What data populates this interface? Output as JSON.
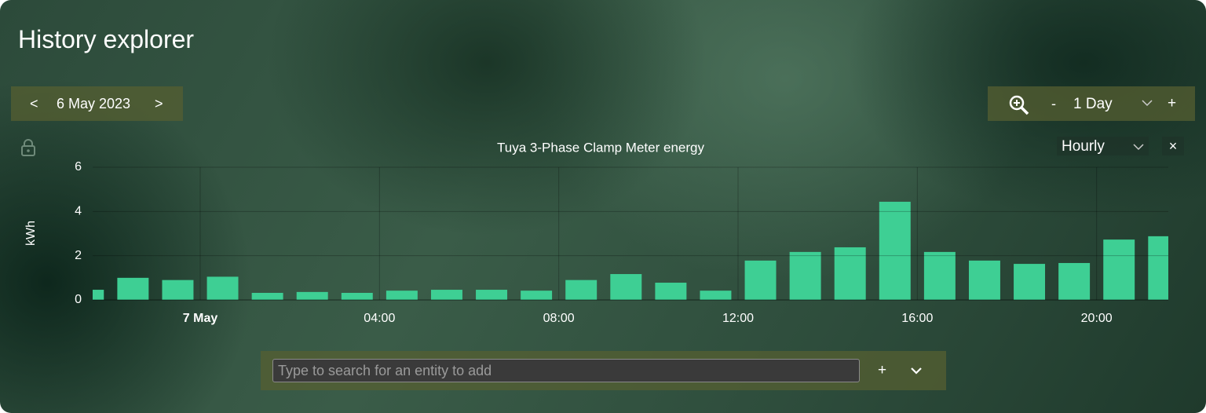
{
  "header": {
    "title": "History explorer"
  },
  "date_nav": {
    "prev": "<",
    "date": "6 May 2023",
    "next": ">"
  },
  "zoom": {
    "minus": "-",
    "range": "1 Day",
    "plus": "+"
  },
  "chart_controls": {
    "period": "Hourly",
    "close": "×"
  },
  "chart_data": {
    "type": "bar",
    "title": "Tuya 3-Phase Clamp Meter energy",
    "y_label": "kWh",
    "x": [
      -3,
      -2,
      -1,
      0,
      1,
      2,
      3,
      4,
      5,
      6,
      7,
      8,
      9,
      10,
      11,
      12,
      13,
      14,
      15,
      16,
      17,
      18,
      19,
      20,
      21
    ],
    "values": [
      0.46,
      1.0,
      0.9,
      1.05,
      0.32,
      0.36,
      0.32,
      0.42,
      0.46,
      0.46,
      0.42,
      0.9,
      1.17,
      0.78,
      0.42,
      1.78,
      2.17,
      2.38,
      4.44,
      2.17,
      1.78,
      1.63,
      1.67,
      2.73,
      2.88
    ],
    "color": "#3ecf94",
    "xlim": [
      -2.4,
      21.6
    ],
    "xticks": [
      {
        "value": 0,
        "label": "7 May"
      },
      {
        "value": 4,
        "label": "04:00"
      },
      {
        "value": 8,
        "label": "08:00"
      },
      {
        "value": 12,
        "label": "12:00"
      },
      {
        "value": 16,
        "label": "16:00"
      },
      {
        "value": 20,
        "label": "20:00"
      }
    ],
    "ylim": [
      0,
      6
    ],
    "yticks": [
      0,
      2,
      4,
      6
    ],
    "grid": true
  },
  "search": {
    "placeholder": "Type to search for an entity to add",
    "add": "+"
  }
}
